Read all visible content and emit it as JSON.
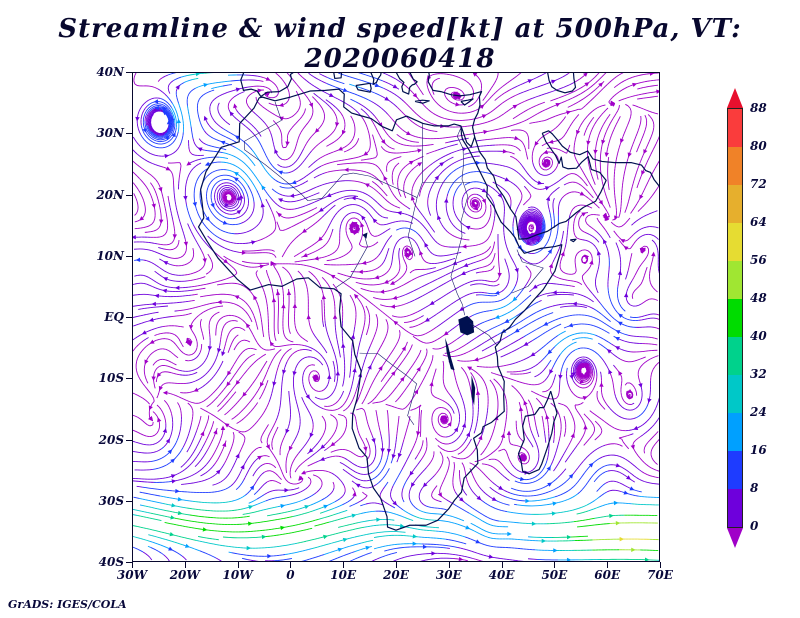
{
  "title": {
    "text": "Streamline & wind speed[kt] at 500hPa, VT: 2020060418"
  },
  "footer": {
    "attribution": "GrADS: IGES/COLA"
  },
  "axes": {
    "lat_labels_top_to_bottom": [
      "40N",
      "30N",
      "20N",
      "10N",
      "EQ",
      "10S",
      "20S",
      "30S",
      "40S"
    ],
    "lon_labels_left_to_right": [
      "30W",
      "20W",
      "10W",
      "0",
      "10E",
      "20E",
      "30E",
      "40E",
      "50E",
      "60E",
      "70E"
    ]
  },
  "colorbar": {
    "labels_top_to_bottom": [
      "88",
      "80",
      "72",
      "64",
      "56",
      "48",
      "40",
      "32",
      "24",
      "16",
      "8",
      "0"
    ],
    "arrow_up_color": "#e8102e",
    "arrow_down_color": "#a000c8",
    "segment_colors_bottom_to_top": [
      "#6e00dc",
      "#1e3cff",
      "#00a0ff",
      "#00c8c8",
      "#00d28c",
      "#00dc00",
      "#a0e632",
      "#e6dc32",
      "#e6af2d",
      "#f08228",
      "#fa3c3c"
    ],
    "stream_speed_colors": [
      "#a000c8",
      "#6e00dc",
      "#1e3cff",
      "#00a0ff",
      "#00c8c8",
      "#00d28c",
      "#00dc00",
      "#a0e632",
      "#e6dc32",
      "#e6af2d",
      "#f08228",
      "#fa3c3c",
      "#e8102e"
    ]
  },
  "map": {
    "coast_color": "#001050",
    "border_color": "#1a1a6e",
    "frame_color": "#08082e"
  },
  "chart_data": {
    "type": "streamline_map",
    "title": "Streamline & wind speed[kt] at 500hPa, VT: 2020060418",
    "variable": "wind speed",
    "units": "kt",
    "pressure_level": "500hPa",
    "valid_time": "2020060418",
    "region": "Africa and surrounding oceans",
    "projection": "latlon",
    "lon_range": [
      -30,
      70
    ],
    "lat_range": [
      -40,
      40
    ],
    "lon_ticks": [
      "30W",
      "20W",
      "10W",
      "0",
      "10E",
      "20E",
      "30E",
      "40E",
      "50E",
      "60E",
      "70E"
    ],
    "lat_ticks": [
      "40N",
      "30N",
      "20N",
      "10N",
      "EQ",
      "10S",
      "20S",
      "30S",
      "40S"
    ],
    "speed_levels_kt": [
      0,
      8,
      16,
      24,
      32,
      40,
      48,
      56,
      64,
      72,
      80,
      88
    ],
    "palette_low_to_high": [
      "#a000c8",
      "#6e00dc",
      "#1e3cff",
      "#00a0ff",
      "#00c8c8",
      "#00d28c",
      "#00dc00",
      "#a0e632",
      "#e6dc32",
      "#e6af2d",
      "#f08228",
      "#fa3c3c",
      "#e8102e"
    ],
    "legend_position": "right",
    "grid": "off",
    "source": "GrADS: IGES/COLA"
  }
}
